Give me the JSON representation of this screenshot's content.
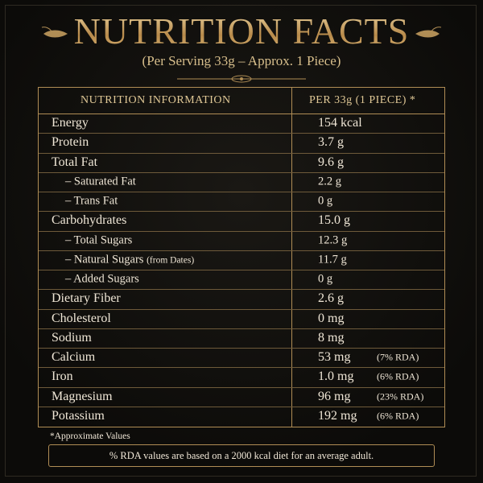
{
  "header": {
    "title": "NUTRITION FACTS",
    "subtitle": "(Per Serving 33g – Approx. 1 Piece)"
  },
  "table": {
    "columns": [
      "NUTRITION INFORMATION",
      "PER 33g (1 PIECE) *"
    ],
    "rows": [
      {
        "label": "Energy",
        "amount": "154 kcal"
      },
      {
        "label": "Protein",
        "amount": "3.7 g"
      },
      {
        "label": "Total Fat",
        "amount": "9.6 g"
      },
      {
        "label": "– Saturated Fat",
        "amount": "2.2 g"
      },
      {
        "label": "– Trans Fat",
        "amount": "0 g"
      },
      {
        "label": "Carbohydrates",
        "amount": "15.0 g"
      },
      {
        "label": "– Total Sugars",
        "amount": "12.3 g"
      },
      {
        "label": "– Natural Sugars",
        "label_note": "(from Dates)",
        "amount": "11.7 g"
      },
      {
        "label": "– Added Sugars",
        "amount": "0 g"
      },
      {
        "label": "Dietary Fiber",
        "amount": "2.6 g"
      },
      {
        "label": "Cholesterol",
        "amount": "0 mg"
      },
      {
        "label": "Sodium",
        "amount": "8 mg"
      },
      {
        "label": "Calcium",
        "amount": "53 mg",
        "rda": "(7% RDA)"
      },
      {
        "label": "Iron",
        "amount": "1.0 mg",
        "rda": "(6% RDA)"
      },
      {
        "label": "Magnesium",
        "amount": "96 mg",
        "rda": "(23% RDA)"
      },
      {
        "label": "Potassium",
        "amount": "192 mg",
        "rda": "(6% RDA)"
      }
    ]
  },
  "footnote": "*Approximate Values",
  "note": "% RDA values are based on a 2000 kcal diet for an average adult."
}
